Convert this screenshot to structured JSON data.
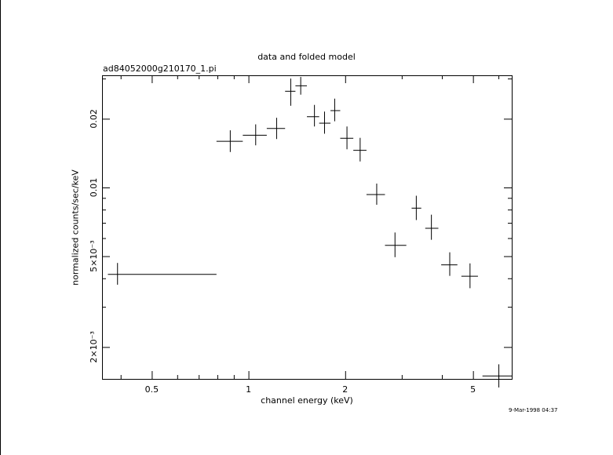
{
  "header": {
    "title": "data and folded model",
    "subtitle": "ad84052000g210170_1.pi"
  },
  "footer": {
    "timestamp": "9-Mar-1998 04:37"
  },
  "chart_data": {
    "type": "scatter",
    "title": "data and folded model",
    "subtitle": "ad84052000g210170_1.pi",
    "xlabel": "channel energy (keV)",
    "ylabel": "normalized counts/sec/keV",
    "x_scale": "log",
    "y_scale": "log",
    "xlim": [
      0.35,
      6.6
    ],
    "ylim": [
      0.00145,
      0.031
    ],
    "x_ticks": [
      {
        "value": 0.5,
        "label": "0.5"
      },
      {
        "value": 1,
        "label": "1"
      },
      {
        "value": 2,
        "label": "2"
      },
      {
        "value": 5,
        "label": "5"
      }
    ],
    "y_ticks": [
      {
        "value": 0.002,
        "label": "2×10⁻³"
      },
      {
        "value": 0.005,
        "label": "5×10⁻³"
      },
      {
        "value": 0.01,
        "label": "0.01"
      },
      {
        "value": 0.02,
        "label": "0.02"
      }
    ],
    "grid": false,
    "line_color": "#000000",
    "series": [
      {
        "points": [
          {
            "x": 0.39,
            "xlo": 0.365,
            "xhi": 0.795,
            "y": 0.00418,
            "ylo": 0.00375,
            "yhi": 0.00467
          },
          {
            "x": 0.875,
            "xlo": 0.795,
            "xhi": 0.96,
            "y": 0.016,
            "ylo": 0.0143,
            "yhi": 0.0178
          },
          {
            "x": 1.05,
            "xlo": 0.96,
            "xhi": 1.14,
            "y": 0.017,
            "ylo": 0.0153,
            "yhi": 0.0189
          },
          {
            "x": 1.22,
            "xlo": 1.14,
            "xhi": 1.3,
            "y": 0.0182,
            "ylo": 0.0163,
            "yhi": 0.0202
          },
          {
            "x": 1.35,
            "xlo": 1.3,
            "xhi": 1.4,
            "y": 0.0265,
            "ylo": 0.0228,
            "yhi": 0.03
          },
          {
            "x": 1.45,
            "xlo": 1.4,
            "xhi": 1.52,
            "y": 0.028,
            "ylo": 0.0255,
            "yhi": 0.0305
          },
          {
            "x": 1.6,
            "xlo": 1.52,
            "xhi": 1.66,
            "y": 0.0205,
            "ylo": 0.0185,
            "yhi": 0.023
          },
          {
            "x": 1.72,
            "xlo": 1.66,
            "xhi": 1.8,
            "y": 0.0192,
            "ylo": 0.0172,
            "yhi": 0.0215
          },
          {
            "x": 1.85,
            "xlo": 1.8,
            "xhi": 1.93,
            "y": 0.0218,
            "ylo": 0.0195,
            "yhi": 0.0245
          },
          {
            "x": 2.02,
            "xlo": 1.93,
            "xhi": 2.12,
            "y": 0.0165,
            "ylo": 0.0147,
            "yhi": 0.0185
          },
          {
            "x": 2.22,
            "xlo": 2.12,
            "xhi": 2.33,
            "y": 0.0146,
            "ylo": 0.013,
            "yhi": 0.0165
          },
          {
            "x": 2.5,
            "xlo": 2.33,
            "xhi": 2.66,
            "y": 0.00935,
            "ylo": 0.0084,
            "yhi": 0.0104
          },
          {
            "x": 2.85,
            "xlo": 2.66,
            "xhi": 3.1,
            "y": 0.0056,
            "ylo": 0.00495,
            "yhi": 0.00635
          },
          {
            "x": 3.32,
            "xlo": 3.22,
            "xhi": 3.45,
            "y": 0.00815,
            "ylo": 0.0072,
            "yhi": 0.0092
          },
          {
            "x": 3.7,
            "xlo": 3.55,
            "xhi": 3.9,
            "y": 0.00665,
            "ylo": 0.0059,
            "yhi": 0.0076
          },
          {
            "x": 4.22,
            "xlo": 3.98,
            "xhi": 4.47,
            "y": 0.0046,
            "ylo": 0.0041,
            "yhi": 0.0052
          },
          {
            "x": 4.88,
            "xlo": 4.6,
            "xhi": 5.18,
            "y": 0.0041,
            "ylo": 0.00362,
            "yhi": 0.00465
          },
          {
            "x": 6.0,
            "xlo": 5.35,
            "xhi": 6.6,
            "y": 0.0015,
            "ylo": 0.00133,
            "yhi": 0.00168
          }
        ]
      }
    ]
  }
}
